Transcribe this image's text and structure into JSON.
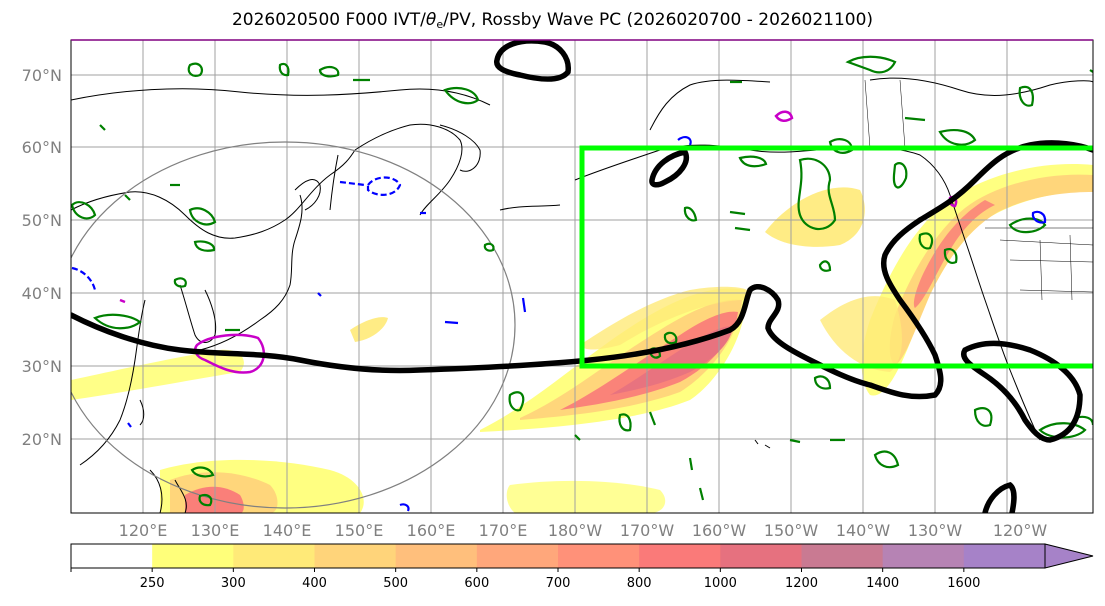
{
  "title": {
    "prefix": "2026020500 F000 IVT/",
    "theta": "θ",
    "sub": "e",
    "suffix": "/PV, Rossby Wave PC (2026020700 - 2026021100)"
  },
  "map": {
    "lon_range": [
      110,
      252
    ],
    "lat_range": [
      10,
      75
    ],
    "lat_ticks": [
      {
        "lat": 70,
        "label": "70°N"
      },
      {
        "lat": 60,
        "label": "60°N"
      },
      {
        "lat": 50,
        "label": "50°N"
      },
      {
        "lat": 40,
        "label": "40°N"
      },
      {
        "lat": 30,
        "label": "30°N"
      },
      {
        "lat": 20,
        "label": "20°N"
      }
    ],
    "lon_ticks": [
      {
        "lon": 120,
        "label": "120°E"
      },
      {
        "lon": 130,
        "label": "130°E"
      },
      {
        "lon": 140,
        "label": "140°E"
      },
      {
        "lon": 150,
        "label": "150°E"
      },
      {
        "lon": 160,
        "label": "160°E"
      },
      {
        "lon": 170,
        "label": "170°E"
      },
      {
        "lon": 180,
        "label": "180°W"
      },
      {
        "lon": 190,
        "label": "170°W"
      },
      {
        "lon": 200,
        "label": "160°W"
      },
      {
        "lon": 210,
        "label": "150°W"
      },
      {
        "lon": 220,
        "label": "140°W"
      },
      {
        "lon": 230,
        "label": "130°W"
      },
      {
        "lon": 240,
        "label": "120°W"
      }
    ],
    "pc_box": {
      "lon_min": 181,
      "lon_max": 252,
      "lat_min": 30,
      "lat_max": 60,
      "color": "#00ff00"
    }
  },
  "colorbar": {
    "levels": [
      250,
      300,
      400,
      500,
      600,
      700,
      800,
      1000,
      1200,
      1400,
      1600
    ],
    "colors": [
      "#ffffff",
      "#ffff7a",
      "#ffea78",
      "#ffd47a",
      "#ffbf7c",
      "#ffa77b",
      "#ff9179",
      "#fa7a79",
      "#e6717f",
      "#c97a92",
      "#b683b4",
      "#a682c8"
    ]
  },
  "legend_colors": {
    "pv_contour": "#000000",
    "theta_e_warm": "#008000",
    "theta_e_magenta": "#c800c8",
    "theta_e_cold": "#0000ff"
  }
}
